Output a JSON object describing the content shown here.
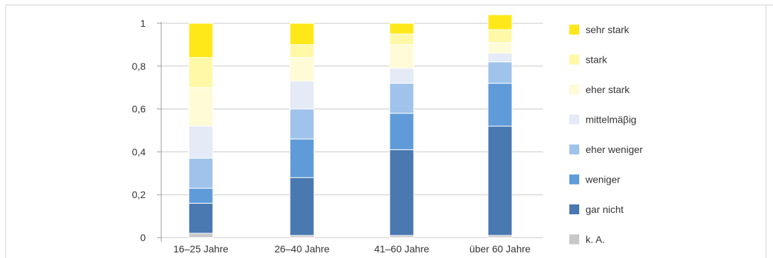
{
  "chart_data": {
    "type": "bar",
    "stacked": true,
    "categories": [
      "16–25 Jahre",
      "26–40 Jahre",
      "41–60 Jahre",
      "über 60 Jahre"
    ],
    "ylim": [
      0,
      1
    ],
    "yticks": [
      0,
      0.2,
      0.4,
      0.6,
      0.8,
      1
    ],
    "ytick_labels": [
      "0",
      "0,2",
      "0,4",
      "0,6",
      "0,8",
      "1"
    ],
    "grid": true,
    "legend_position": "right",
    "series": [
      {
        "name": "k. A.",
        "color": "#c8c8c8",
        "values": [
          0.02,
          0.01,
          0.01,
          0.01
        ]
      },
      {
        "name": "gar nicht",
        "color": "#4a78b0",
        "values": [
          0.14,
          0.27,
          0.4,
          0.51
        ]
      },
      {
        "name": "weniger",
        "color": "#5f9bd8",
        "values": [
          0.07,
          0.18,
          0.17,
          0.2
        ]
      },
      {
        "name": "eher weniger",
        "color": "#9fc3ea",
        "values": [
          0.14,
          0.14,
          0.14,
          0.1
        ]
      },
      {
        "name": "mittelmäβig",
        "color": "#e4eaf6",
        "values": [
          0.15,
          0.13,
          0.07,
          0.04
        ]
      },
      {
        "name": "eher stark",
        "color": "#fefbd6",
        "values": [
          0.18,
          0.11,
          0.11,
          0.05
        ]
      },
      {
        "name": "stark",
        "color": "#fff8a6",
        "values": [
          0.14,
          0.06,
          0.05,
          0.06
        ]
      },
      {
        "name": "sehr stark",
        "color": "#ffe81a",
        "values": [
          0.16,
          0.1,
          0.05,
          0.07
        ]
      }
    ]
  }
}
